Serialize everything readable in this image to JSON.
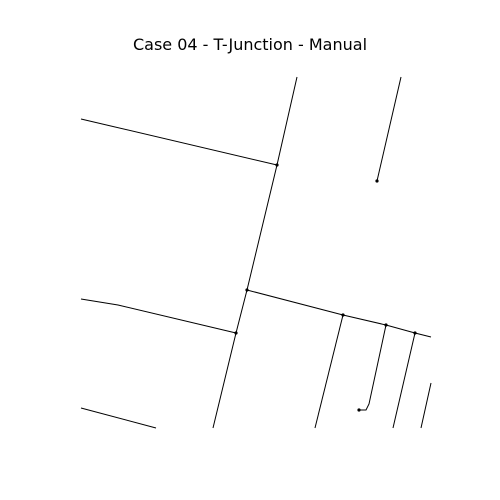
{
  "figure": {
    "title": "Case 04 - T-Junction - Manual"
  },
  "style": {
    "line_color": "#000000",
    "node_color": "#000000",
    "background": "#ffffff"
  }
}
